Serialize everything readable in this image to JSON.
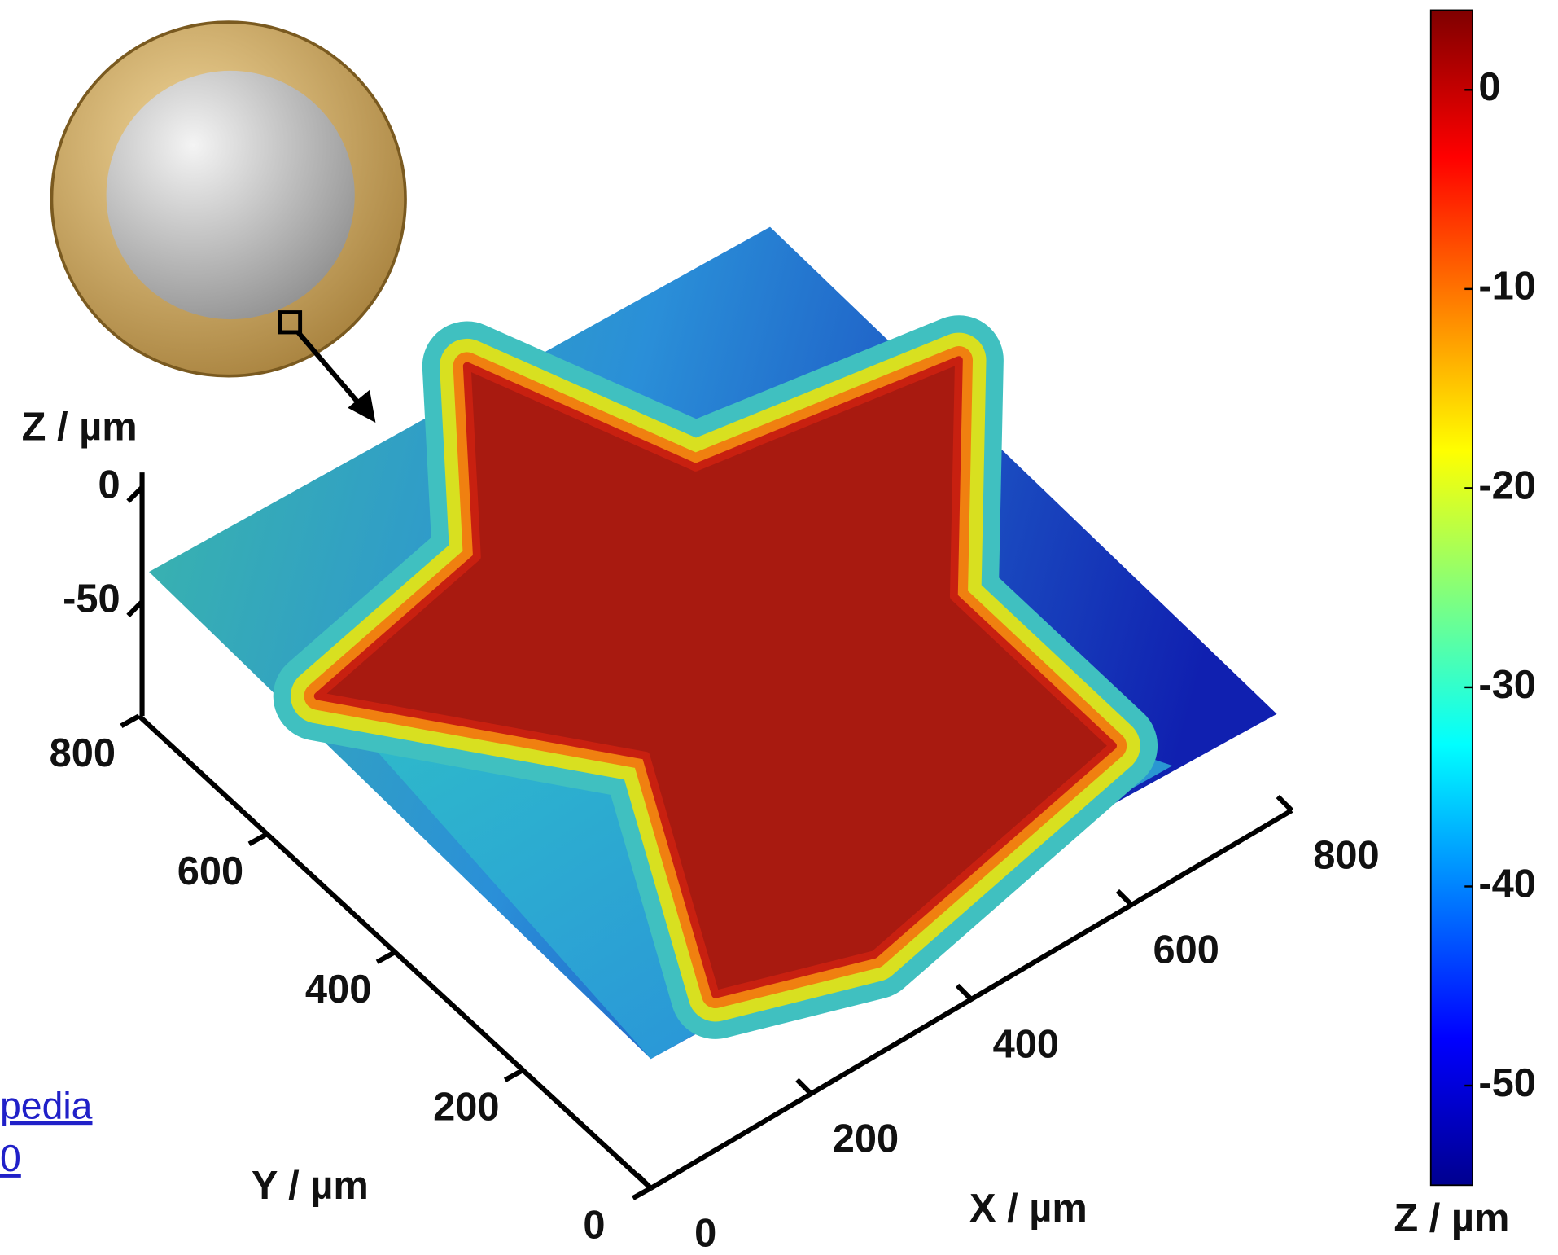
{
  "chart_data": {
    "type": "surface",
    "x_label": "X / µm",
    "y_label": "Y / µm",
    "z_label": "Z / µm",
    "xlim": [
      0,
      800
    ],
    "xticks": [
      0,
      200,
      400,
      600,
      800
    ],
    "ylim": [
      0,
      800
    ],
    "yticks": [
      0,
      200,
      400,
      600,
      800
    ],
    "zlim": [
      -100,
      0
    ],
    "zticks": [
      0,
      -50
    ],
    "colorbar": {
      "label": "Z / µm",
      "lim": [
        -55,
        4
      ],
      "ticks": [
        0,
        -10,
        -20,
        -30,
        -40,
        -50
      ],
      "colormap": "jet"
    }
  },
  "credit": [
    "pedia",
    "0"
  ]
}
